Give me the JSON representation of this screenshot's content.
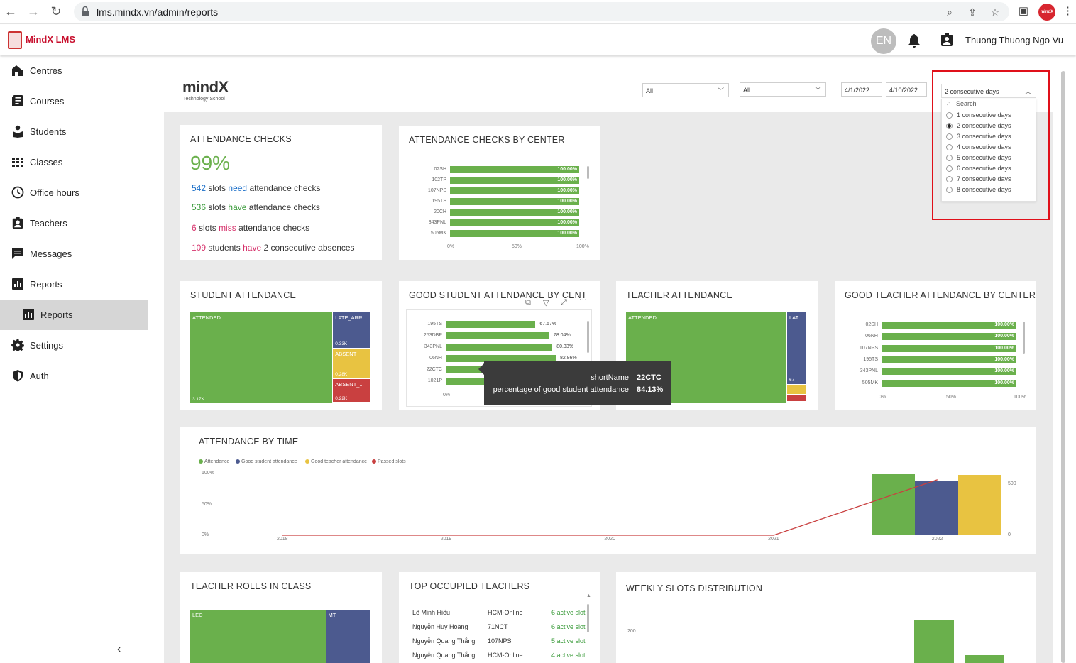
{
  "browser": {
    "url": "lms.mindx.vn/admin/reports",
    "extension_badge": "mindX"
  },
  "header": {
    "app_name": "MindX LMS",
    "language": "EN",
    "user_name": "Thuong Thuong Ngo Vu"
  },
  "sidebar": {
    "items": [
      {
        "label": "Centres",
        "icon": "building-icon"
      },
      {
        "label": "Courses",
        "icon": "book-list-icon"
      },
      {
        "label": "Students",
        "icon": "student-icon"
      },
      {
        "label": "Classes",
        "icon": "grid-icon"
      },
      {
        "label": "Office hours",
        "icon": "clock-icon"
      },
      {
        "label": "Teachers",
        "icon": "badge-icon"
      },
      {
        "label": "Messages",
        "icon": "message-icon"
      },
      {
        "label": "Reports",
        "icon": "bar-chart-icon"
      },
      {
        "label": "Reports",
        "icon": "bar-chart-icon",
        "active": true
      },
      {
        "label": "Settings",
        "icon": "gear-icon"
      },
      {
        "label": "Auth",
        "icon": "shield-icon"
      }
    ],
    "collapse_glyph": "‹"
  },
  "report": {
    "brand_main": "mindX",
    "brand_sub": "Technology School",
    "filters": {
      "center": "All",
      "course": "All",
      "date_from": "4/1/2022",
      "date_to": "4/10/2022",
      "consecutive": "2 consecutive days"
    },
    "dropdown": {
      "search_placeholder": "Search",
      "options": [
        {
          "label": "1 consecutive days",
          "selected": false
        },
        {
          "label": "2 consecutive days",
          "selected": true
        },
        {
          "label": "3 consecutive days",
          "selected": false
        },
        {
          "label": "4 consecutive days",
          "selected": false
        },
        {
          "label": "5 consecutive days",
          "selected": false
        },
        {
          "label": "6 consecutive days",
          "selected": false
        },
        {
          "label": "7 consecutive days",
          "selected": false
        },
        {
          "label": "8 consecutive days",
          "selected": false
        }
      ]
    },
    "kpi": {
      "title": "ATTENDANCE CHECKS",
      "percent": "99%",
      "line1": {
        "num": "542",
        "a": "slots",
        "kw": "need",
        "b": "attendance checks"
      },
      "line2": {
        "num": "536",
        "a": "slots",
        "kw": "have",
        "b": "attendance checks"
      },
      "line3": {
        "num": "6",
        "a": "slots",
        "kw": "miss",
        "b": "attendance checks"
      },
      "line4": {
        "num": "109",
        "a": "students",
        "kw": "have",
        "b": "2 consecutive absences"
      }
    },
    "tooltip": {
      "k1": "shortName",
      "v1": "22CTC",
      "k2": "percentage of good student attendance",
      "v2": "84.13%"
    },
    "teachers": {
      "title": "TOP OCCUPIED TEACHERS",
      "rows": [
        {
          "name": "Lê Minh Hiếu",
          "center": "HCM-Online",
          "slots": "6 active slot"
        },
        {
          "name": "Nguyễn Huy Hoàng",
          "center": "71NCT",
          "slots": "6 active slot"
        },
        {
          "name": "Nguyễn Quang Thắng",
          "center": "107NPS",
          "slots": "5 active slot"
        },
        {
          "name": "Nguyễn Quang Thắng",
          "center": "HCM-Online",
          "slots": "4 active slot"
        }
      ]
    }
  },
  "chart_data": [
    {
      "type": "bar",
      "title": "ATTENDANCE CHECKS BY CENTER",
      "orientation": "horizontal",
      "categories": [
        "02SH",
        "102TP",
        "107NPS",
        "195TS",
        "20CH",
        "343PNL",
        "505MK"
      ],
      "values": [
        100,
        100,
        100,
        100,
        100,
        100,
        100
      ],
      "value_labels": [
        "100.00%",
        "100.00%",
        "100.00%",
        "100.00%",
        "100.00%",
        "100.00%",
        "100.00%"
      ],
      "xticks": [
        "0%",
        "50%",
        "100%"
      ],
      "xlim": [
        0,
        100
      ]
    },
    {
      "type": "treemap",
      "title": "STUDENT ATTENDANCE",
      "segments": [
        {
          "name": "ATTENDED",
          "value_label": "3.17K",
          "value": 3170,
          "color": "#6ab04c"
        },
        {
          "name": "LATE_ARR...",
          "value_label": "0.33K",
          "value": 330,
          "color": "#4c5a8f"
        },
        {
          "name": "ABSENT",
          "value_label": "0.28K",
          "value": 280,
          "color": "#e8c341"
        },
        {
          "name": "ABSENT_...",
          "value_label": "0.22K",
          "value": 220,
          "color": "#c94040"
        }
      ]
    },
    {
      "type": "bar",
      "title": "GOOD STUDENT ATTENDANCE BY CENTER",
      "orientation": "horizontal",
      "categories": [
        "195TS",
        "253DBP",
        "343PNL",
        "06NH",
        "22CTC",
        "1021P"
      ],
      "values": [
        67.57,
        78.04,
        80.33,
        82.86,
        84.13,
        84.5
      ],
      "value_labels": [
        "67.57%",
        "78.04%",
        "80.33%",
        "82.86%",
        "",
        ""
      ],
      "xticks": [
        "0%"
      ],
      "xlim": [
        0,
        100
      ]
    },
    {
      "type": "treemap",
      "title": "TEACHER ATTENDANCE",
      "segments": [
        {
          "name": "ATTENDED",
          "value_label": "",
          "value": 1000,
          "color": "#6ab04c"
        },
        {
          "name": "LAT...",
          "value_label": "67",
          "value": 67,
          "color": "#4c5a8f"
        },
        {
          "name": "",
          "value_label": "",
          "value": 8,
          "color": "#e8c341"
        },
        {
          "name": "",
          "value_label": "",
          "value": 6,
          "color": "#c94040"
        }
      ]
    },
    {
      "type": "bar",
      "title": "GOOD TEACHER ATTENDANCE BY CENTER",
      "orientation": "horizontal",
      "categories": [
        "02SH",
        "06NH",
        "107NPS",
        "195TS",
        "343PNL",
        "505MK"
      ],
      "values": [
        100,
        100,
        100,
        100,
        100,
        100
      ],
      "value_labels": [
        "100.00%",
        "100.00%",
        "100.00%",
        "100.00%",
        "100.00%",
        "100.00%"
      ],
      "xticks": [
        "0%",
        "50%",
        "100%"
      ],
      "xlim": [
        0,
        100
      ]
    },
    {
      "type": "bar",
      "title": "ATTENDANCE BY TIME",
      "x": [
        "2018",
        "2019",
        "2020",
        "2021",
        "2022"
      ],
      "legend": [
        "Attendance",
        "Good student attendance",
        "Good teacher attendance",
        "Passed slots"
      ],
      "series": [
        {
          "name": "Attendance",
          "color": "#6ab04c",
          "values": [
            0,
            0,
            0,
            0,
            99
          ]
        },
        {
          "name": "Good student attendance",
          "color": "#4c5a8f",
          "values": [
            0,
            0,
            0,
            0,
            89
          ]
        },
        {
          "name": "Good teacher attendance",
          "color": "#e8c341",
          "values": [
            0,
            0,
            0,
            0,
            98
          ]
        },
        {
          "name": "Passed slots",
          "color": "#c94040",
          "type": "line",
          "values": [
            0,
            0,
            0,
            0,
            540
          ]
        }
      ],
      "yticks_left": [
        "100%",
        "50%",
        "0%"
      ],
      "yticks_right": [
        "500",
        "0"
      ],
      "ylim_left": [
        0,
        100
      ],
      "ylim_right": [
        0,
        600
      ]
    },
    {
      "type": "treemap",
      "title": "TEACHER ROLES IN CLASS",
      "segments": [
        {
          "name": "LEC",
          "value": 190,
          "color": "#6ab04c"
        },
        {
          "name": "MT",
          "value": 62,
          "color": "#4c5a8f"
        }
      ]
    },
    {
      "type": "bar",
      "title": "WEEKLY SLOTS DISTRIBUTION",
      "yticks": [
        "200"
      ],
      "series": [
        {
          "color": "#6ab04c",
          "values": [
            320,
            60
          ]
        }
      ]
    }
  ]
}
